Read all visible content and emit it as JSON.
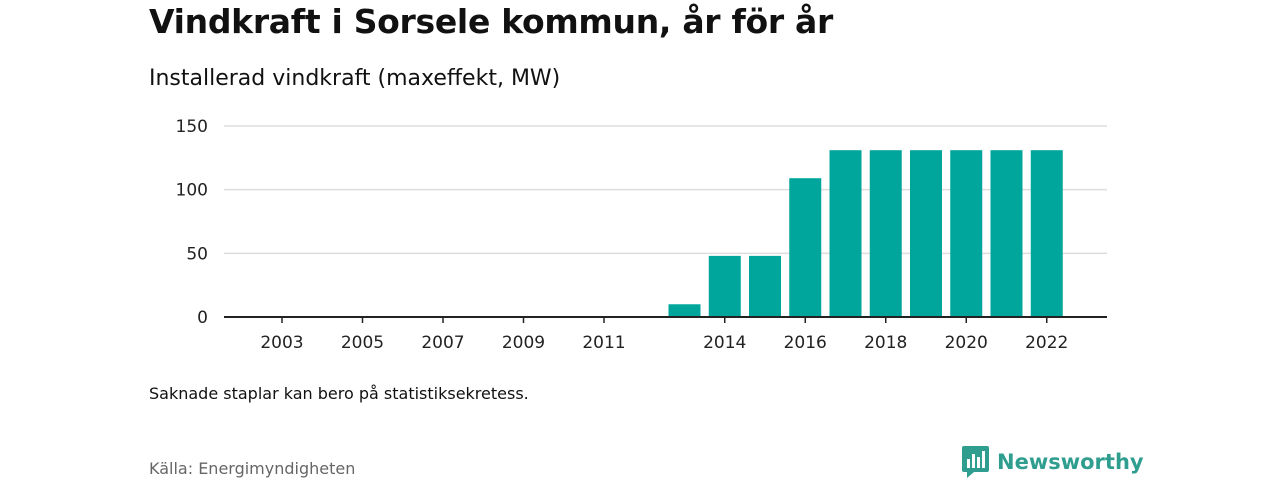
{
  "header": {
    "title": "Vindkraft i Sorsele kommun, år för år",
    "subtitle": "Installerad vindkraft (maxeffekt, MW)"
  },
  "footer": {
    "note": "Saknade staplar kan bero på statistiksekretess.",
    "source": "Källa: Energimyndigheten",
    "brand": "Newsworthy"
  },
  "colors": {
    "bar": "#00a69c",
    "grid": "#dddddd",
    "axis": "#222222",
    "brand": "#2f9e8f"
  },
  "chart_data": {
    "type": "bar",
    "title": "Vindkraft i Sorsele kommun, år för år",
    "subtitle": "Installerad vindkraft (maxeffekt, MW)",
    "categories": [
      2003,
      2004,
      2005,
      2006,
      2007,
      2008,
      2009,
      2010,
      2011,
      2012,
      2013,
      2014,
      2015,
      2016,
      2017,
      2018,
      2019,
      2020,
      2021,
      2022
    ],
    "values": [
      0,
      0,
      0,
      0,
      0,
      0,
      0,
      0,
      0,
      0,
      10,
      48,
      48,
      109,
      131,
      131,
      131,
      131,
      131,
      131
    ],
    "x_tick_labels": [
      "2003",
      "2005",
      "2007",
      "2009",
      "2011",
      "2014",
      "2016",
      "2018",
      "2020",
      "2022"
    ],
    "y_ticks": [
      0,
      50,
      100,
      150
    ],
    "ylim": [
      0,
      150
    ],
    "grid": true,
    "legend": "none"
  }
}
